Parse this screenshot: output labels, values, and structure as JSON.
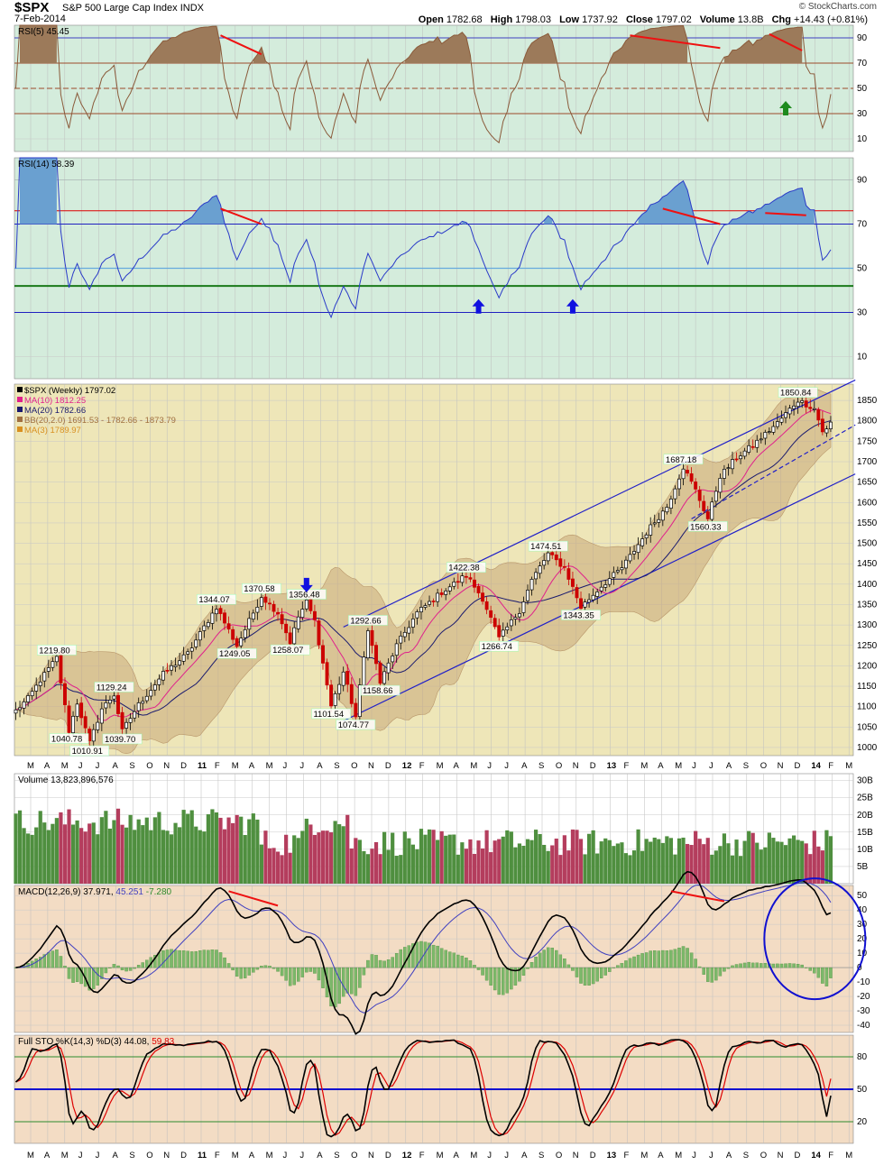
{
  "header": {
    "symbol": "$SPX",
    "name": "S&P 500 Large Cap Index",
    "exchange": "INDX",
    "date": "7-Feb-2014",
    "watermark": "© StockCharts.com",
    "ohlc": [
      {
        "label": "Open",
        "value": "1782.68"
      },
      {
        "label": "High",
        "value": "1798.03"
      },
      {
        "label": "Low",
        "value": "1737.92"
      },
      {
        "label": "Close",
        "value": "1797.02"
      },
      {
        "label": "Volume",
        "value": "13.8B"
      },
      {
        "label": "Chg",
        "value": "+14.43 (+0.81%)"
      }
    ]
  },
  "colors": {
    "rsi_panel": "#d4ecdc",
    "price_panel": "#eee6b8",
    "volume_panel": "#ffffff",
    "macd_panel": "#f3dcc4",
    "sto_panel": "#f3dcc4",
    "up": "#000000",
    "down": "#cc0000",
    "vol_up": "#4f8f3f",
    "vol_down": "#b43d5d",
    "ma10": "#e0208c",
    "ma20": "#1a1a6e",
    "bb": "#c9a878",
    "channel": "#2020c8",
    "divergence": "#ee1111"
  },
  "x_axis": {
    "months": [
      "M",
      "A",
      "M",
      "J",
      "J",
      "A",
      "S",
      "O",
      "N",
      "D",
      "11",
      "F",
      "M",
      "A",
      "M",
      "J",
      "J",
      "A",
      "S",
      "O",
      "N",
      "D",
      "12",
      "F",
      "M",
      "A",
      "M",
      "J",
      "J",
      "A",
      "S",
      "O",
      "N",
      "D",
      "13",
      "F",
      "M",
      "A",
      "M",
      "J",
      "J",
      "A",
      "S",
      "O",
      "N",
      "D",
      "14",
      "F",
      "M"
    ]
  },
  "chart_data": [
    {
      "type": "line",
      "panel": "RSI(5)",
      "legend": "RSI(5) 45.45",
      "y_ticks": [
        "90",
        "70",
        "50",
        "30",
        "10"
      ],
      "levels": [
        90,
        70,
        50,
        30,
        10
      ],
      "ylim": [
        0,
        100
      ],
      "last_value": 45.45
    },
    {
      "type": "line",
      "panel": "RSI(14)",
      "legend": "RSI(14) 58.39",
      "y_ticks": [
        "90",
        "70",
        "50",
        "30",
        "10"
      ],
      "levels": [
        90,
        76,
        70,
        50,
        42,
        30,
        10
      ],
      "ylim": [
        0,
        100
      ],
      "last_value": 58.39
    },
    {
      "type": "candlestick",
      "panel": "$SPX (Weekly)",
      "legend": [
        {
          "text": "$SPX (Weekly) 1797.02",
          "color": "#000000"
        },
        {
          "text": "MA(10) 1812.25",
          "color": "#e0208c"
        },
        {
          "text": "MA(20) 1782.66",
          "color": "#1a1a6e"
        },
        {
          "text": "BB(20,2.0) 1691.53 - 1782.66 - 1873.79",
          "color": "#a07040"
        },
        {
          "text": "MA(3) 1789.97",
          "color": "#d89020"
        }
      ],
      "y_ticks": [
        "1850",
        "1800",
        "1750",
        "1700",
        "1650",
        "1600",
        "1550",
        "1500",
        "1450",
        "1400",
        "1350",
        "1300",
        "1250",
        "1200",
        "1150",
        "1100",
        "1050",
        "1000"
      ],
      "ylim": [
        980,
        1890
      ],
      "annotations": [
        {
          "text": "1219.80",
          "value": 1219.8,
          "week": 10
        },
        {
          "text": "1040.78",
          "value": 1040.78,
          "week": 13
        },
        {
          "text": "1010.91",
          "value": 1010.91,
          "week": 18
        },
        {
          "text": "1129.24",
          "value": 1129.24,
          "week": 24
        },
        {
          "text": "1039.70",
          "value": 1039.7,
          "week": 26
        },
        {
          "text": "1344.07",
          "value": 1344.07,
          "week": 49
        },
        {
          "text": "1249.05",
          "value": 1249.05,
          "week": 54
        },
        {
          "text": "1370.58",
          "value": 1370.58,
          "week": 60
        },
        {
          "text": "1258.07",
          "value": 1258.07,
          "week": 67
        },
        {
          "text": "1356.48",
          "value": 1356.48,
          "week": 71
        },
        {
          "text": "1101.54",
          "value": 1101.54,
          "week": 77
        },
        {
          "text": "1074.77",
          "value": 1074.77,
          "week": 83
        },
        {
          "text": "1292.66",
          "value": 1292.66,
          "week": 86
        },
        {
          "text": "1158.66",
          "value": 1158.66,
          "week": 89
        },
        {
          "text": "1422.38",
          "value": 1422.38,
          "week": 110
        },
        {
          "text": "1266.74",
          "value": 1266.74,
          "week": 118
        },
        {
          "text": "1474.51",
          "value": 1474.51,
          "week": 130
        },
        {
          "text": "1343.35",
          "value": 1343.35,
          "week": 138
        },
        {
          "text": "1687.18",
          "value": 1687.18,
          "week": 163
        },
        {
          "text": "1560.33",
          "value": 1560.33,
          "week": 169
        },
        {
          "text": "1850.84",
          "value": 1850.84,
          "week": 191
        }
      ],
      "last_close": 1797.02
    },
    {
      "type": "bar",
      "panel": "Volume",
      "legend": "Volume 13,823,896,576",
      "y_ticks": [
        "30B",
        "25B",
        "20B",
        "15B",
        "10B",
        "5B"
      ],
      "ylim": [
        0,
        32
      ],
      "unit": "B",
      "last_value": 13.823896576
    },
    {
      "type": "line",
      "panel": "MACD(12,26,9)",
      "legend": [
        {
          "text": "MACD(12,26,9) 37.971,",
          "color": "#000000"
        },
        {
          "text": "45.251",
          "color": "#4040c0"
        },
        {
          "text": "-7.280",
          "color": "#2e8b2e"
        }
      ],
      "y_ticks": [
        "50",
        "40",
        "30",
        "20",
        "10",
        "0",
        "-10",
        "-20",
        "-30",
        "-40"
      ],
      "ylim": [
        -45,
        57
      ],
      "values": {
        "macd": 37.971,
        "signal": 45.251,
        "histogram": -7.28
      }
    },
    {
      "type": "line",
      "panel": "Full STO",
      "legend": [
        {
          "text": "Full STO %K(14,3) %D(3) 44.08,",
          "color": "#000000"
        },
        {
          "text": "59.83",
          "color": "#dd0000"
        }
      ],
      "y_ticks": [
        "80",
        "50",
        "20"
      ],
      "levels": [
        80,
        50,
        20
      ],
      "ylim": [
        0,
        100
      ],
      "values": {
        "k": 44.08,
        "d": 59.83
      }
    }
  ]
}
